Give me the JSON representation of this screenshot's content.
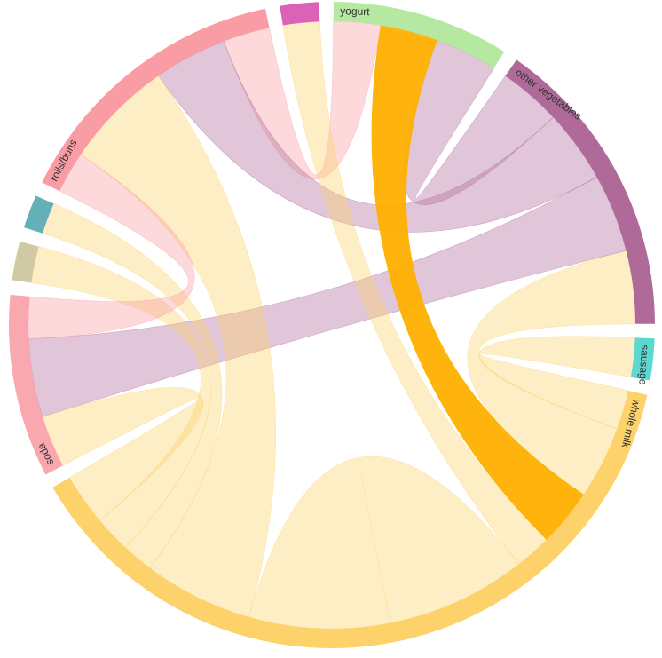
{
  "chart_data": {
    "type": "chord",
    "groups": [
      {
        "name": "yogurt",
        "color": "#b5e8a0"
      },
      {
        "name": "other vegetables",
        "color": "#b06a9a"
      },
      {
        "name": "sausage",
        "color": "#5dd8d0"
      },
      {
        "name": "whole milk",
        "color": "#fdd26a"
      },
      {
        "name": "soda",
        "color": "#f9a8b0"
      },
      {
        "name": null,
        "color": "#d1c9a4"
      },
      {
        "name": null,
        "color": "#63b0b9"
      },
      {
        "name": "rolls/buns",
        "color": "#f99ca4"
      },
      {
        "name": null,
        "color": "#db62b6"
      }
    ],
    "matrix": [
      [
        0,
        12,
        0,
        11,
        0,
        0,
        0,
        9,
        0
      ],
      [
        12,
        0,
        0,
        14,
        15,
        0,
        0,
        14,
        0
      ],
      [
        0,
        0,
        0,
        7.5,
        0,
        0,
        0,
        0,
        0
      ],
      [
        11,
        14,
        7.5,
        27,
        10,
        7,
        6,
        21,
        7
      ],
      [
        0,
        15,
        0,
        10,
        0,
        0,
        0,
        8,
        0
      ],
      [
        0,
        0,
        0,
        7,
        0,
        0,
        0,
        0,
        0
      ],
      [
        0,
        0,
        0,
        6,
        0,
        0,
        0,
        0,
        0
      ],
      [
        9,
        14,
        0,
        21,
        8,
        0,
        0,
        0,
        0
      ],
      [
        0,
        0,
        0,
        7,
        0,
        0,
        0,
        0,
        0
      ]
    ],
    "highlight": [
      "yogurt",
      "whole milk"
    ],
    "highlight_color": "#ffb000"
  }
}
